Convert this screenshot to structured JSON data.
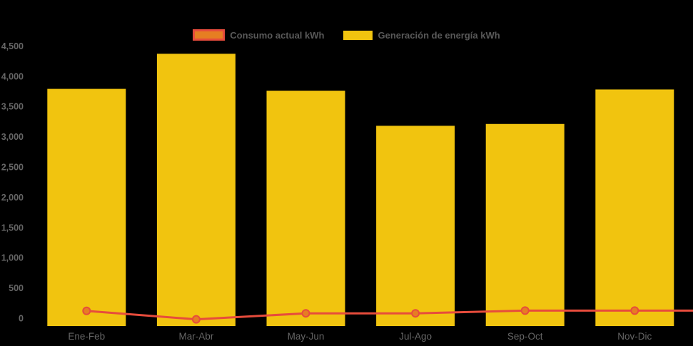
{
  "colors": {
    "background": "#000000",
    "bar": "#F1C40F",
    "line": "#E74C3C",
    "marker_fill": "#E67E22",
    "axis_text": "#666666",
    "legend_text": "#595959"
  },
  "legend": {
    "items": [
      {
        "label": "Consumo actual kWh",
        "swatch_fill": "#E67E22",
        "swatch_border": "#E74C3C"
      },
      {
        "label": "Generación de energía kWh",
        "swatch_fill": "#F1C40F",
        "swatch_border": ""
      }
    ]
  },
  "chart_data": {
    "type": "bar",
    "categories": [
      "Ene-Feb",
      "Mar-Abr",
      "May-Jun",
      "Jul-Ago",
      "Sep-Oct",
      "Nov-Dic"
    ],
    "series": [
      {
        "name": "Generación de energía kWh",
        "type": "bar",
        "color": "#F1C40F",
        "values": [
          3920,
          4500,
          3890,
          3310,
          3340,
          3910
        ]
      },
      {
        "name": "Consumo actual kWh",
        "type": "line",
        "color": "#E74C3C",
        "marker_fill": "#E67E22",
        "values": [
          250,
          110,
          210,
          210,
          255,
          255
        ]
      }
    ],
    "title": "",
    "xlabel": "",
    "ylabel": "",
    "ylim": [
      0,
      4500
    ],
    "y_ticks": [
      0,
      500,
      1000,
      1500,
      2000,
      2500,
      3000,
      3500,
      4000,
      4500
    ],
    "y_tick_labels": [
      "0",
      "500",
      "1,000",
      "1,500",
      "2,000",
      "2,500",
      "3,000",
      "3,500",
      "4,000",
      "4,500"
    ],
    "grid": false,
    "legend_position": "top"
  }
}
